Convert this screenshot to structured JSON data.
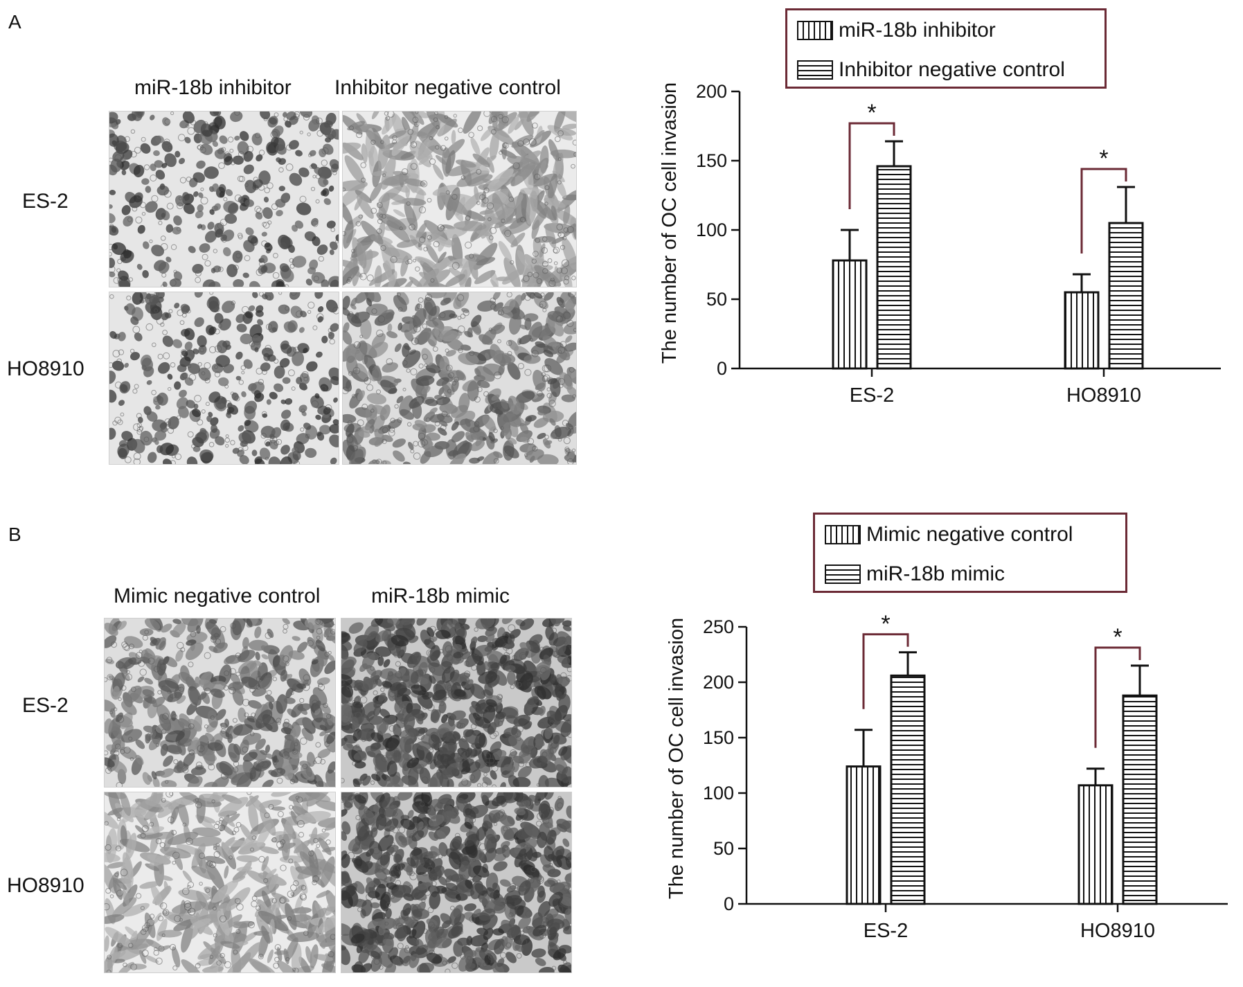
{
  "panels": [
    {
      "letter": "A",
      "column_labels": [
        "miR-18b inhibitor",
        "Inhibitor negative control"
      ],
      "row_labels": [
        "ES-2",
        "HO8910"
      ],
      "images": [
        {
          "name": "micro-a-es2-inhibitor",
          "tone": "dark-sparse"
        },
        {
          "name": "micro-a-es2-control",
          "tone": "light-spindle"
        },
        {
          "name": "micro-a-ho8910-inhibitor",
          "tone": "dark-sparse"
        },
        {
          "name": "micro-a-ho8910-control",
          "tone": "medium"
        }
      ],
      "legend": [
        {
          "label": "miR-18b inhibitor",
          "pattern": "vertical"
        },
        {
          "label": "Inhibitor negative control",
          "pattern": "horizontal"
        }
      ]
    },
    {
      "letter": "B",
      "column_labels": [
        "Mimic negative control",
        "miR-18b mimic"
      ],
      "row_labels": [
        "ES-2",
        "HO8910"
      ],
      "images": [
        {
          "name": "micro-b-es2-control",
          "tone": "medium"
        },
        {
          "name": "micro-b-es2-mimic",
          "tone": "dark-dense"
        },
        {
          "name": "micro-b-ho8910-control",
          "tone": "light-spindle"
        },
        {
          "name": "micro-b-ho8910-mimic",
          "tone": "dark-dense"
        }
      ],
      "legend": [
        {
          "label": "Mimic negative control",
          "pattern": "vertical"
        },
        {
          "label": "miR-18b mimic",
          "pattern": "horizontal"
        }
      ]
    }
  ],
  "chart_data": [
    {
      "type": "bar",
      "ylabel": "The number of OC cell invasion",
      "xlabel": "",
      "categories": [
        "ES-2",
        "HO8910"
      ],
      "ylim": [
        0,
        200
      ],
      "yticks": [
        0,
        50,
        100,
        150,
        200
      ],
      "grid": false,
      "legend_position": "top",
      "series": [
        {
          "name": "miR-18b inhibitor",
          "pattern": "vertical",
          "values": [
            78,
            55
          ],
          "errors": [
            22,
            13
          ]
        },
        {
          "name": "Inhibitor negative control",
          "pattern": "horizontal",
          "values": [
            146,
            105
          ],
          "errors": [
            18,
            26
          ]
        }
      ],
      "significance": [
        "*",
        "*"
      ]
    },
    {
      "type": "bar",
      "ylabel": "The number of OC cell invasion",
      "xlabel": "",
      "categories": [
        "ES-2",
        "HO8910"
      ],
      "ylim": [
        0,
        250
      ],
      "yticks": [
        0,
        50,
        100,
        150,
        200,
        250
      ],
      "grid": false,
      "legend_position": "top",
      "series": [
        {
          "name": "Mimic negative control",
          "pattern": "vertical",
          "values": [
            124,
            107
          ],
          "errors": [
            33,
            15
          ]
        },
        {
          "name": "miR-18b mimic",
          "pattern": "horizontal",
          "values": [
            206,
            188
          ],
          "errors": [
            21,
            27
          ]
        }
      ],
      "significance": [
        "*",
        "*"
      ]
    }
  ],
  "colors": {
    "axis": "#111111",
    "bracket": "#6b2a35",
    "legend_border": "#6b2a35"
  }
}
